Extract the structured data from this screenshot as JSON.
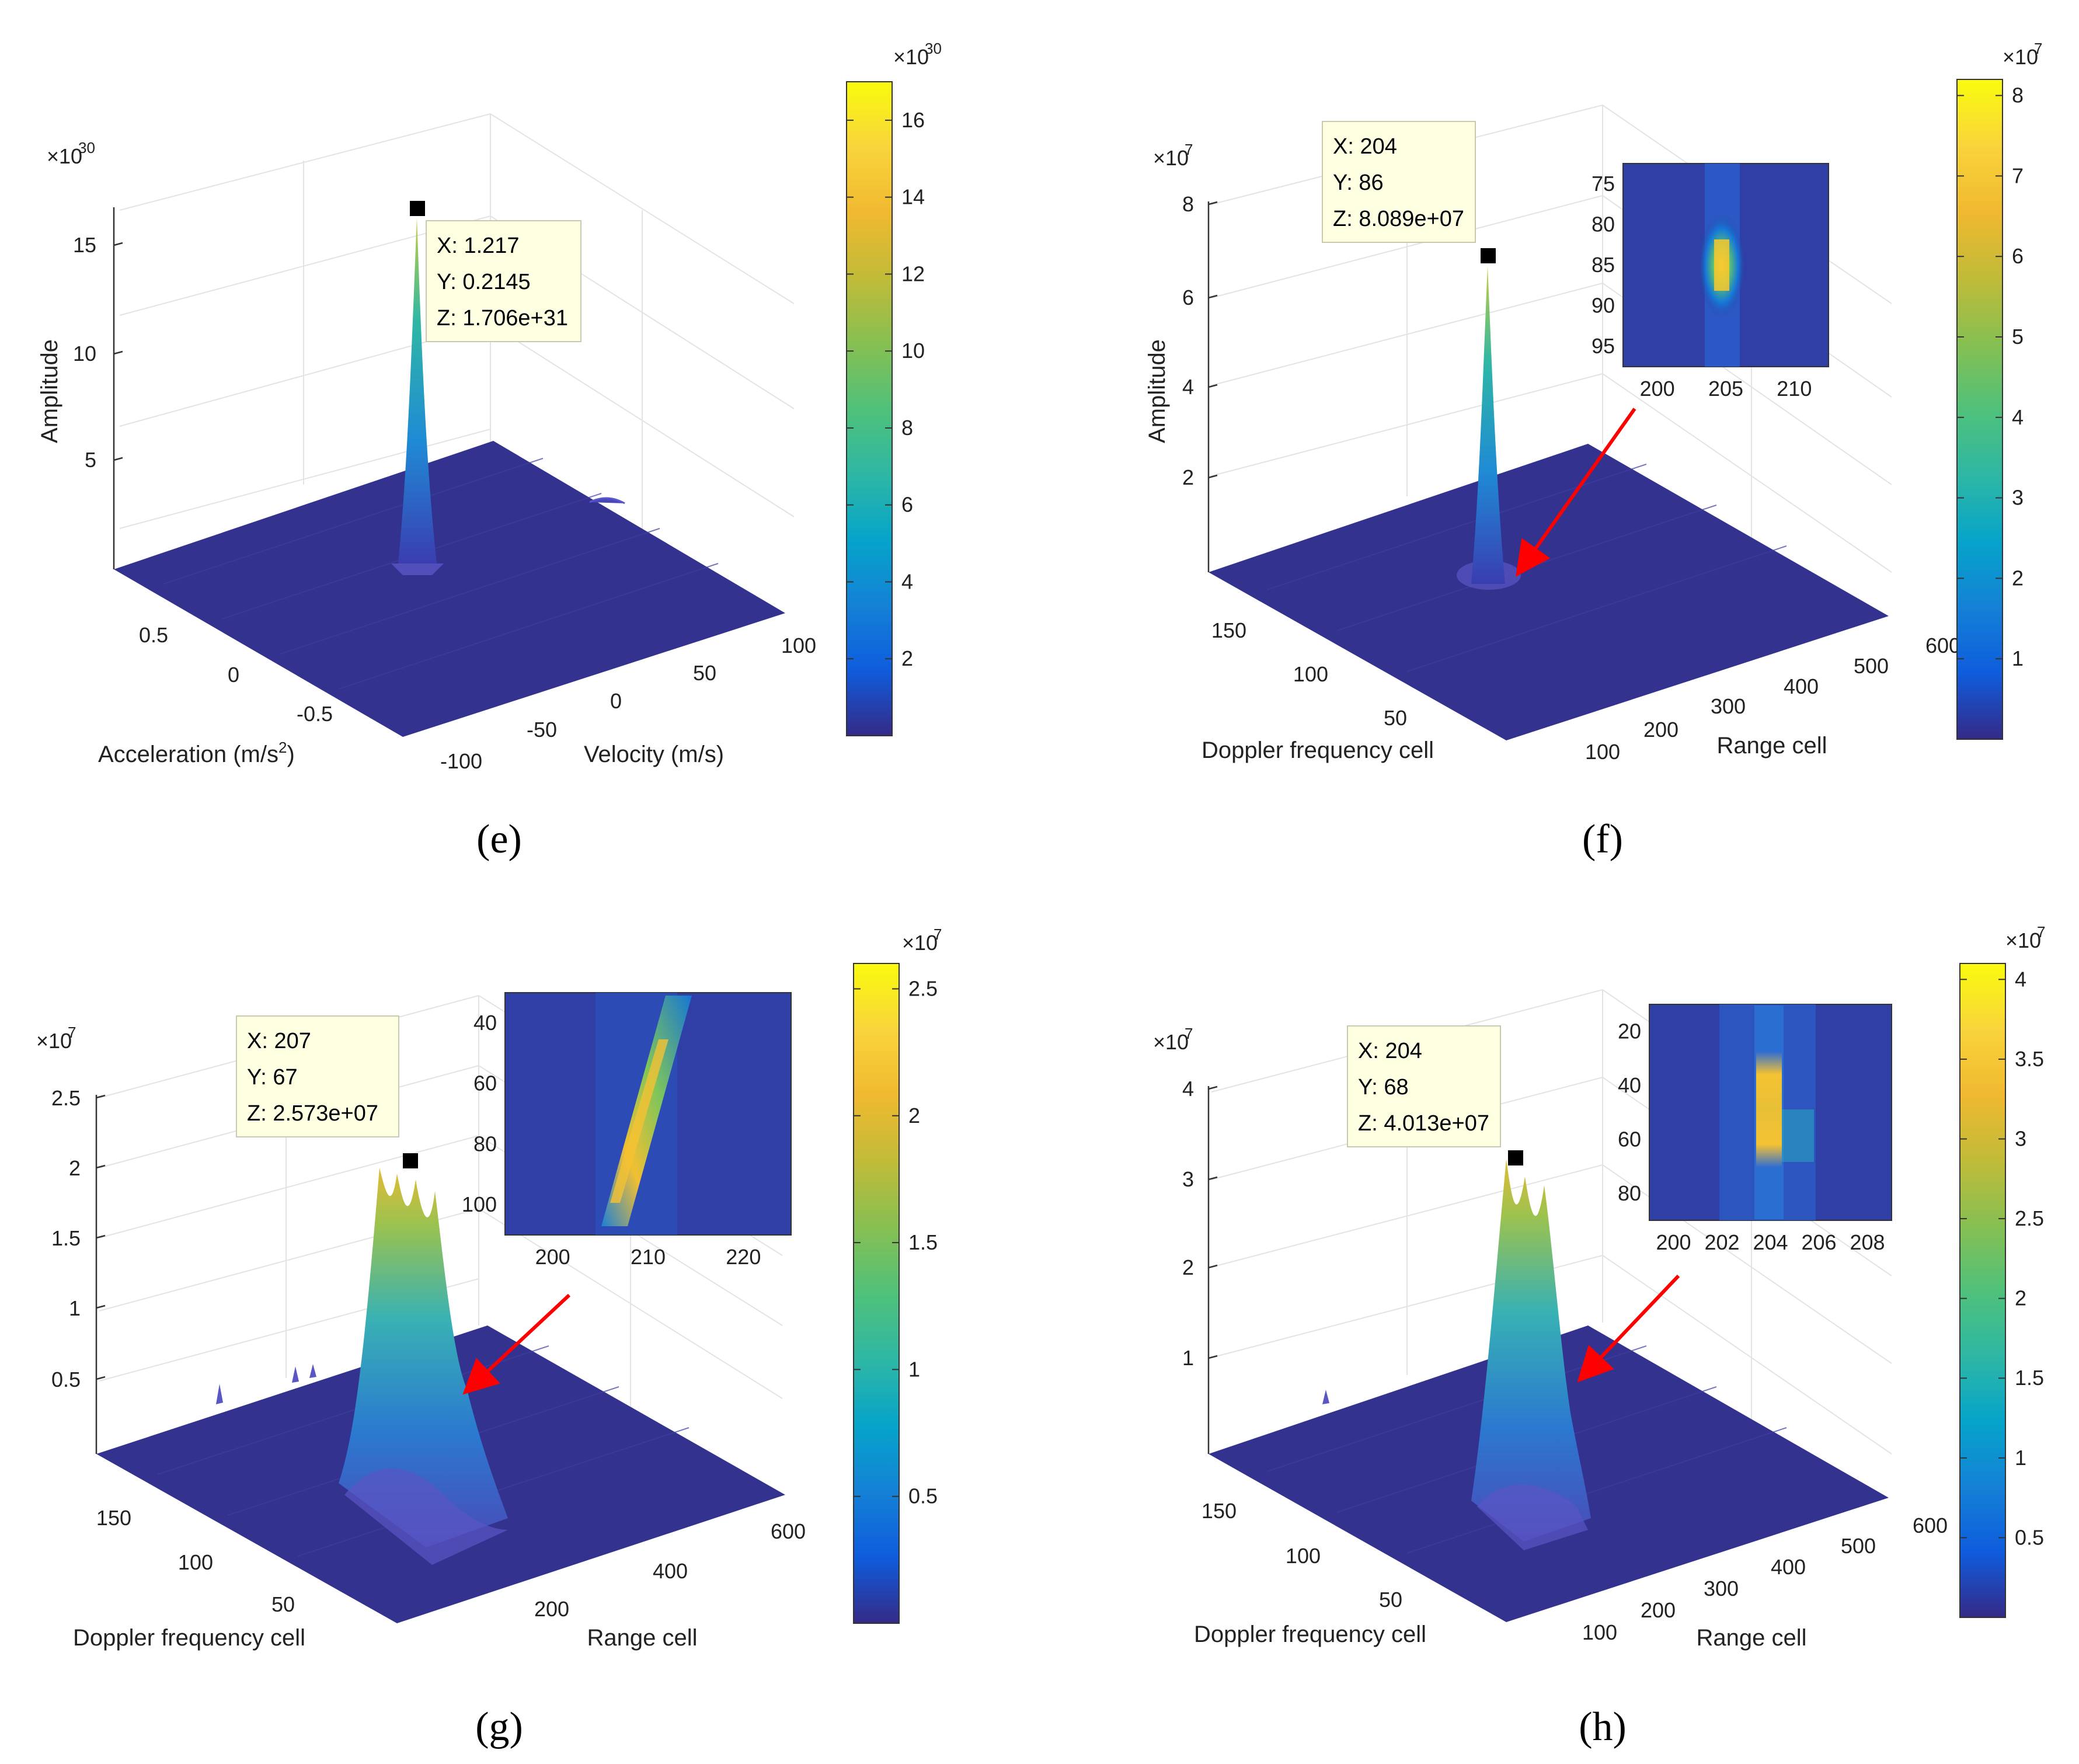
{
  "charts": [
    {
      "id": "e",
      "caption": "(e)",
      "mult": "×10",
      "exp": "30",
      "cb_mult": "×10",
      "cb_exp": "30",
      "zlabel": "Amplitude",
      "xlabel": "Acceleration (m/s",
      "xlabel_sup": "2",
      "xlabel_end": ")",
      "ylabel": "Velocity (m/s)",
      "tip": [
        "X: 1.217",
        "Y: 0.2145",
        "Z: 1.706e+31"
      ],
      "has_arrow": false
    },
    {
      "id": "f",
      "caption": "(f)",
      "mult": "×10",
      "exp": "7",
      "cb_mult": "×10",
      "cb_exp": "7",
      "zlabel": "Amplitude",
      "xlabel": "Doppler frequency cell",
      "ylabel": "Range cell",
      "tip": [
        "X: 204",
        "Y: 86",
        "Z: 8.089e+07"
      ],
      "has_arrow": true,
      "inset": {
        "y_ticks": [
          "75",
          "80",
          "85",
          "90",
          "95"
        ],
        "x_ticks": [
          "200",
          "205",
          "210"
        ]
      }
    },
    {
      "id": "g",
      "caption": "(g)",
      "mult": "×10",
      "exp": "7",
      "cb_mult": "×10",
      "cb_exp": "7",
      "zlabel": "",
      "xlabel": "Doppler frequency cell",
      "ylabel": "Range cell",
      "tip": [
        "X: 207",
        "Y: 67",
        "Z: 2.573e+07"
      ],
      "has_arrow": true,
      "inset": {
        "y_ticks": [
          "40",
          "60",
          "80",
          "100"
        ],
        "x_ticks": [
          "200",
          "210",
          "220"
        ]
      }
    },
    {
      "id": "h",
      "caption": "(h)",
      "mult": "×10",
      "exp": "7",
      "cb_mult": "×10",
      "cb_exp": "7",
      "zlabel": "",
      "xlabel": "Doppler frequency cell",
      "ylabel": "Range cell",
      "tip": [
        "X: 204",
        "Y: 68",
        "Z: 4.013e+07"
      ],
      "has_arrow": true,
      "inset": {
        "y_ticks": [
          "20",
          "40",
          "60",
          "80"
        ],
        "x_ticks": [
          "200",
          "202",
          "204",
          "206",
          "208"
        ]
      }
    }
  ],
  "chart_data": [
    {
      "type": "surface",
      "panel": "e",
      "title": "(e)",
      "xlabel": "Acceleration (m/s2)",
      "ylabel": "Velocity (m/s)",
      "zlabel": "Amplitude",
      "x_ticks": [
        0.5,
        0,
        -0.5
      ],
      "y_ticks": [
        -100,
        -50,
        0,
        50,
        100
      ],
      "z_ticks": [
        5,
        10,
        15
      ],
      "z_multiplier": "1e30",
      "colorbar_ticks": [
        2,
        4,
        6,
        8,
        10,
        12,
        14,
        16
      ],
      "colorbar_range": [
        0,
        17
      ],
      "peaks": [
        {
          "x": 1.217,
          "y": 0.2145,
          "z": 17.06
        }
      ],
      "datatip": {
        "x": 1.217,
        "y": 0.2145,
        "z": "1.706e+31"
      }
    },
    {
      "type": "surface",
      "panel": "f",
      "title": "(f)",
      "xlabel": "Doppler frequency cell",
      "ylabel": "Range cell",
      "zlabel": "Amplitude",
      "x_ticks": [
        150,
        100,
        50
      ],
      "y_ticks": [
        100,
        200,
        300,
        400,
        500,
        600
      ],
      "z_ticks": [
        2,
        4,
        6,
        8
      ],
      "z_multiplier": "1e7",
      "colorbar_ticks": [
        1,
        2,
        3,
        4,
        5,
        6,
        7,
        8
      ],
      "colorbar_range": [
        0,
        8.2
      ],
      "peaks": [
        {
          "x": 204,
          "y": 86,
          "z": 8.089
        }
      ],
      "datatip": {
        "x": 204,
        "y": 86,
        "z": "8.089e+07"
      }
    },
    {
      "type": "surface",
      "panel": "g",
      "title": "(g)",
      "xlabel": "Doppler frequency cell",
      "ylabel": "Range cell",
      "x_ticks": [
        150,
        100,
        50
      ],
      "y_ticks": [
        200,
        400,
        600
      ],
      "z_ticks": [
        0.5,
        1,
        1.5,
        2,
        2.5
      ],
      "z_multiplier": "1e7",
      "colorbar_ticks": [
        0.5,
        1,
        1.5,
        2,
        2.5
      ],
      "colorbar_range": [
        0,
        2.6
      ],
      "peaks": [
        {
          "x": 207,
          "y": 67,
          "z": 2.573
        }
      ],
      "datatip": {
        "x": 207,
        "y": 67,
        "z": "2.573e+07"
      }
    },
    {
      "type": "surface",
      "panel": "h",
      "title": "(h)",
      "xlabel": "Doppler frequency cell",
      "ylabel": "Range cell",
      "x_ticks": [
        150,
        100,
        50
      ],
      "y_ticks": [
        100,
        200,
        300,
        400,
        500,
        600
      ],
      "z_ticks": [
        1,
        2,
        3,
        4
      ],
      "z_multiplier": "1e7",
      "colorbar_ticks": [
        0.5,
        1,
        1.5,
        2,
        2.5,
        3,
        3.5,
        4
      ],
      "colorbar_range": [
        0,
        4.1
      ],
      "peaks": [
        {
          "x": 204,
          "y": 68,
          "z": 4.013
        }
      ],
      "datatip": {
        "x": 204,
        "y": 68,
        "z": "4.013e+07"
      }
    }
  ]
}
